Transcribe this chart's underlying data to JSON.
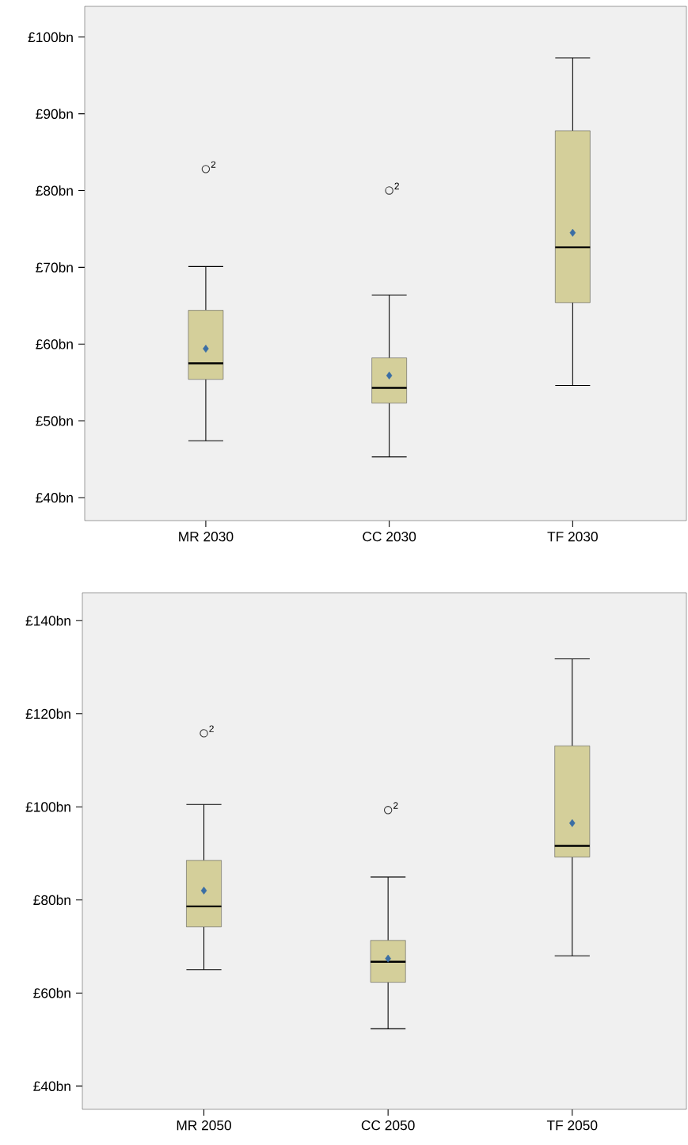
{
  "chart_data": [
    {
      "type": "box",
      "categories": [
        "MR 2030",
        "CC 2030",
        "TF 2030"
      ],
      "ylim": [
        37,
        104
      ],
      "yticks": [
        {
          "value": 40,
          "label": "£40bn"
        },
        {
          "value": 50,
          "label": "£50bn"
        },
        {
          "value": 60,
          "label": "£60bn"
        },
        {
          "value": 70,
          "label": "£70bn"
        },
        {
          "value": 80,
          "label": "£80bn"
        },
        {
          "value": 90,
          "label": "£90bn"
        },
        {
          "value": 100,
          "label": "£100bn"
        }
      ],
      "grid": false,
      "marker": "diamond",
      "series": [
        {
          "color": "#d4cf9a",
          "boxes": [
            {
              "low": 47.4,
              "q1": 55.4,
              "median": 57.5,
              "q3": 64.4,
              "high": 70.1,
              "mean": 59.4,
              "outliers": [
                82.8
              ]
            },
            {
              "low": 45.3,
              "q1": 52.3,
              "median": 54.3,
              "q3": 58.2,
              "high": 66.4,
              "mean": 55.9,
              "outliers": [
                80
              ]
            },
            {
              "low": 54.6,
              "q1": 65.4,
              "median": 72.6,
              "q3": 87.8,
              "high": 97.3,
              "mean": 74.5
            }
          ]
        }
      ],
      "annotations": [
        "2",
        "2"
      ]
    },
    {
      "type": "box",
      "categories": [
        "MR 2050",
        "CC 2050",
        "TF 2050"
      ],
      "ylim": [
        35,
        146
      ],
      "yticks": [
        {
          "value": 40,
          "label": "£40bn"
        },
        {
          "value": 60,
          "label": "£60bn"
        },
        {
          "value": 80,
          "label": "£80bn"
        },
        {
          "value": 100,
          "label": "£100bn"
        },
        {
          "value": 120,
          "label": "£120bn"
        },
        {
          "value": 140,
          "label": "£140bn"
        }
      ],
      "grid": false,
      "marker": "diamond",
      "series": [
        {
          "color": "#d4cf9a",
          "boxes": [
            {
              "low": 65.0,
              "q1": 74.2,
              "median": 78.6,
              "q3": 88.5,
              "high": 100.5,
              "mean": 82.0,
              "outliers": [
                115.8
              ]
            },
            {
              "low": 52.3,
              "q1": 62.3,
              "median": 66.7,
              "q3": 71.3,
              "high": 84.9,
              "mean": 67.4,
              "outliers": [
                99.3
              ]
            },
            {
              "low": 68.0,
              "q1": 89.2,
              "median": 91.6,
              "q3": 113.1,
              "high": 131.8,
              "mean": 96.5
            }
          ]
        }
      ],
      "annotations": [
        "2",
        "2"
      ]
    }
  ]
}
